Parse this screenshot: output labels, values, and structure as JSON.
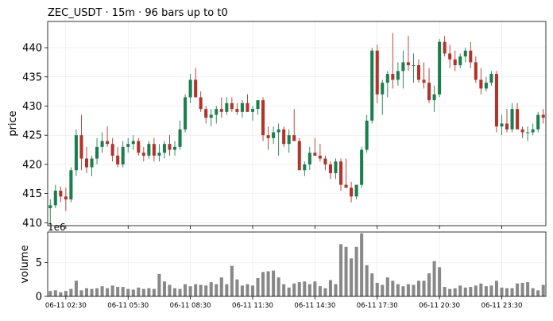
{
  "chart_data": {
    "type": "candlestick",
    "title": "ZEC_USDT  ·  15m  ·  96 bars up to t0",
    "ylabel": "price",
    "volume_label": "volume",
    "volume_multiplier_label": "1e6",
    "price_yticks": [
      410,
      415,
      420,
      425,
      430,
      435,
      440
    ],
    "price_ylim": [
      409.5,
      444.5
    ],
    "volume_yticks": [
      0,
      5
    ],
    "volume_ylim": [
      0,
      9.5
    ],
    "volume_unit": 1000000,
    "xtick_labels": [
      {
        "index": 3,
        "label": "06-11 02:30"
      },
      {
        "index": 15,
        "label": "06-11 05:30"
      },
      {
        "index": 27,
        "label": "06-11 08:30"
      },
      {
        "index": 39,
        "label": "06-11 11:30"
      },
      {
        "index": 51,
        "label": "06-11 14:30"
      },
      {
        "index": 63,
        "label": "06-11 17:30"
      },
      {
        "index": 75,
        "label": "06-11 20:30"
      },
      {
        "index": 87,
        "label": "06-11 23:30"
      }
    ],
    "colors": {
      "up": "#1a7f4e",
      "down": "#b3322a",
      "volume": "#888888",
      "grid": "#e6e6e6"
    },
    "ohlc": [
      [
        412.5,
        414.0,
        409.8,
        413.0
      ],
      [
        413.0,
        416.5,
        412.5,
        415.5
      ],
      [
        415.5,
        416.2,
        413.5,
        414.5
      ],
      [
        414.5,
        416.0,
        412.0,
        414.0
      ],
      [
        414.0,
        419.5,
        413.5,
        419.0
      ],
      [
        419.0,
        426.0,
        418.0,
        425.0
      ],
      [
        425.0,
        428.5,
        419.0,
        421.0
      ],
      [
        421.0,
        423.0,
        418.5,
        419.5
      ],
      [
        419.5,
        421.5,
        418.0,
        421.0
      ],
      [
        421.0,
        424.5,
        420.0,
        423.0
      ],
      [
        423.0,
        425.5,
        422.0,
        424.0
      ],
      [
        424.0,
        426.5,
        423.0,
        423.5
      ],
      [
        423.5,
        424.5,
        420.5,
        421.5
      ],
      [
        421.5,
        423.0,
        419.5,
        420.0
      ],
      [
        420.0,
        424.0,
        419.5,
        423.0
      ],
      [
        423.0,
        424.5,
        422.0,
        423.5
      ],
      [
        423.5,
        425.0,
        422.5,
        424.0
      ],
      [
        424.0,
        424.5,
        421.5,
        422.0
      ],
      [
        422.0,
        423.0,
        420.5,
        421.5
      ],
      [
        421.5,
        424.0,
        421.0,
        423.5
      ],
      [
        423.5,
        424.5,
        420.5,
        421.5
      ],
      [
        421.5,
        423.5,
        420.5,
        422.0
      ],
      [
        422.0,
        424.0,
        421.0,
        423.5
      ],
      [
        423.5,
        425.0,
        421.5,
        422.5
      ],
      [
        422.5,
        424.0,
        421.5,
        423.0
      ],
      [
        423.0,
        427.5,
        422.5,
        426.0
      ],
      [
        426.0,
        432.0,
        425.5,
        431.5
      ],
      [
        431.5,
        435.5,
        430.5,
        434.5
      ],
      [
        434.5,
        436.5,
        431.5,
        431.5
      ],
      [
        431.5,
        432.5,
        429.0,
        429.5
      ],
      [
        429.5,
        430.0,
        427.0,
        428.0
      ],
      [
        428.0,
        429.5,
        426.5,
        428.5
      ],
      [
        428.5,
        430.0,
        427.0,
        429.5
      ],
      [
        429.5,
        431.5,
        428.0,
        429.0
      ],
      [
        429.0,
        431.5,
        428.5,
        430.5
      ],
      [
        430.5,
        431.5,
        429.0,
        429.5
      ],
      [
        429.5,
        430.5,
        428.5,
        429.0
      ],
      [
        429.0,
        431.0,
        428.0,
        430.5
      ],
      [
        430.5,
        432.0,
        429.0,
        429.0
      ],
      [
        429.0,
        430.0,
        427.5,
        429.5
      ],
      [
        429.5,
        431.0,
        428.5,
        431.0
      ],
      [
        431.0,
        431.5,
        424.0,
        425.0
      ],
      [
        425.0,
        426.5,
        422.5,
        424.5
      ],
      [
        424.5,
        426.5,
        423.5,
        425.5
      ],
      [
        425.5,
        427.0,
        421.5,
        426.0
      ],
      [
        426.0,
        426.5,
        423.0,
        423.5
      ],
      [
        423.5,
        426.0,
        422.0,
        425.0
      ],
      [
        425.0,
        429.5,
        424.0,
        424.0
      ],
      [
        424.0,
        424.5,
        419.0,
        419.0
      ],
      [
        419.0,
        420.5,
        418.0,
        420.0
      ],
      [
        420.0,
        423.0,
        419.0,
        422.0
      ],
      [
        422.0,
        424.5,
        421.5,
        421.5
      ],
      [
        421.5,
        423.5,
        420.5,
        421.0
      ],
      [
        421.0,
        421.5,
        419.0,
        420.0
      ],
      [
        420.0,
        420.5,
        417.5,
        418.5
      ],
      [
        418.5,
        421.0,
        417.5,
        420.5
      ],
      [
        420.5,
        421.0,
        415.5,
        416.5
      ],
      [
        416.5,
        421.0,
        416.0,
        416.0
      ],
      [
        416.0,
        417.0,
        413.5,
        414.5
      ],
      [
        414.5,
        416.5,
        414.0,
        416.5
      ],
      [
        416.5,
        423.0,
        416.0,
        422.5
      ],
      [
        422.5,
        428.5,
        422.0,
        427.5
      ],
      [
        427.5,
        440.0,
        427.0,
        439.5
      ],
      [
        439.5,
        440.5,
        430.5,
        432.0
      ],
      [
        432.0,
        434.5,
        428.5,
        434.0
      ],
      [
        434.0,
        436.0,
        431.5,
        435.5
      ],
      [
        435.5,
        442.5,
        433.0,
        434.5
      ],
      [
        434.5,
        437.5,
        433.5,
        436.0
      ],
      [
        436.0,
        439.5,
        433.0,
        437.5
      ],
      [
        437.5,
        442.0,
        436.0,
        437.0
      ],
      [
        437.0,
        439.0,
        434.0,
        437.0
      ],
      [
        437.0,
        438.0,
        434.0,
        434.5
      ],
      [
        434.5,
        437.5,
        433.0,
        434.0
      ],
      [
        434.0,
        436.5,
        430.5,
        431.0
      ],
      [
        431.0,
        433.5,
        429.0,
        432.0
      ],
      [
        432.0,
        441.5,
        431.5,
        441.0
      ],
      [
        441.0,
        442.0,
        438.5,
        439.0
      ],
      [
        439.0,
        440.5,
        436.5,
        438.0
      ],
      [
        438.0,
        439.5,
        436.0,
        437.0
      ],
      [
        437.0,
        439.0,
        436.5,
        438.5
      ],
      [
        438.5,
        440.0,
        437.5,
        439.5
      ],
      [
        439.5,
        441.0,
        436.5,
        437.5
      ],
      [
        437.5,
        438.5,
        434.0,
        434.5
      ],
      [
        434.5,
        436.5,
        432.0,
        433.0
      ],
      [
        433.0,
        435.0,
        432.5,
        434.0
      ],
      [
        434.0,
        436.0,
        433.5,
        435.5
      ],
      [
        435.5,
        436.0,
        425.5,
        426.5
      ],
      [
        426.5,
        428.5,
        425.0,
        427.0
      ],
      [
        427.0,
        429.5,
        425.5,
        426.0
      ],
      [
        426.0,
        430.5,
        425.5,
        429.5
      ],
      [
        429.5,
        430.5,
        426.0,
        426.0
      ],
      [
        426.0,
        426.5,
        424.5,
        425.5
      ],
      [
        425.5,
        426.5,
        424.0,
        425.5
      ],
      [
        425.5,
        427.0,
        425.0,
        426.0
      ],
      [
        426.0,
        429.0,
        425.5,
        428.5
      ],
      [
        428.5,
        429.5,
        427.0,
        428.0
      ]
    ],
    "volume": [
      0.8,
      0.9,
      0.6,
      0.8,
      1.1,
      2.3,
      0.9,
      1.2,
      1.1,
      1.2,
      1.5,
      1.2,
      1.6,
      1.4,
      1.4,
      1.1,
      1.0,
      1.3,
      1.1,
      1.2,
      1.1,
      3.3,
      2.2,
      1.7,
      1.2,
      1.1,
      1.8,
      1.5,
      1.8,
      1.7,
      1.6,
      2.1,
      1.8,
      2.8,
      1.8,
      4.5,
      2.5,
      1.6,
      1.8,
      1.6,
      2.7,
      3.6,
      3.7,
      3.8,
      2.8,
      1.8,
      1.3,
      1.9,
      2.1,
      2.2,
      1.8,
      2.2,
      1.5,
      1.2,
      2.4,
      1.8,
      7.7,
      7.3,
      5.6,
      7.3,
      9.3,
      4.6,
      3.4,
      2.0,
      1.7,
      2.8,
      2.3,
      1.8,
      1.5,
      1.8,
      1.7,
      2.3,
      2.3,
      3.4,
      5.2,
      4.3,
      1.4,
      1.1,
      1.2,
      1.6,
      1.3,
      1.4,
      1.6,
      1.9,
      1.5,
      1.6,
      2.3,
      1.3,
      1.2,
      1.2,
      1.9,
      2.0,
      2.1,
      1.2,
      0.9,
      1.7
    ]
  }
}
